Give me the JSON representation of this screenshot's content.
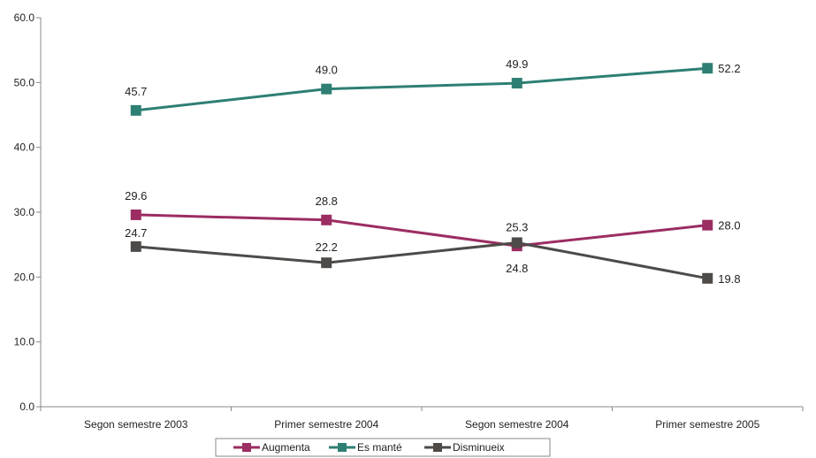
{
  "chart_data": {
    "type": "line",
    "categories": [
      "Segon semestre 2003",
      "Primer semestre 2004",
      "Segon semestre 2004",
      "Primer semestre 2005"
    ],
    "series": [
      {
        "name": "Augmenta",
        "color": "#9b2d62",
        "values": [
          29.6,
          28.8,
          24.8,
          28.0
        ],
        "labels": [
          "29.6",
          "28.8",
          "24.8",
          "28.0"
        ]
      },
      {
        "name": "Es manté",
        "color": "#2e7f73",
        "values": [
          45.7,
          49.0,
          49.9,
          52.2
        ],
        "labels": [
          "45.7",
          "49.0",
          "49.9",
          "52.2"
        ]
      },
      {
        "name": "Disminueix",
        "color": "#4d4a48",
        "values": [
          24.7,
          22.2,
          25.3,
          19.8
        ],
        "labels": [
          "24.7",
          "22.2",
          "25.3",
          "19.8"
        ]
      }
    ],
    "yticks": [
      "0.0",
      "10.0",
      "20.0",
      "30.0",
      "40.0",
      "50.0",
      "60.0"
    ],
    "ylim": [
      0,
      60
    ],
    "grid": false,
    "legend_position": "bottom",
    "title": "",
    "xlabel": "",
    "ylabel": ""
  }
}
